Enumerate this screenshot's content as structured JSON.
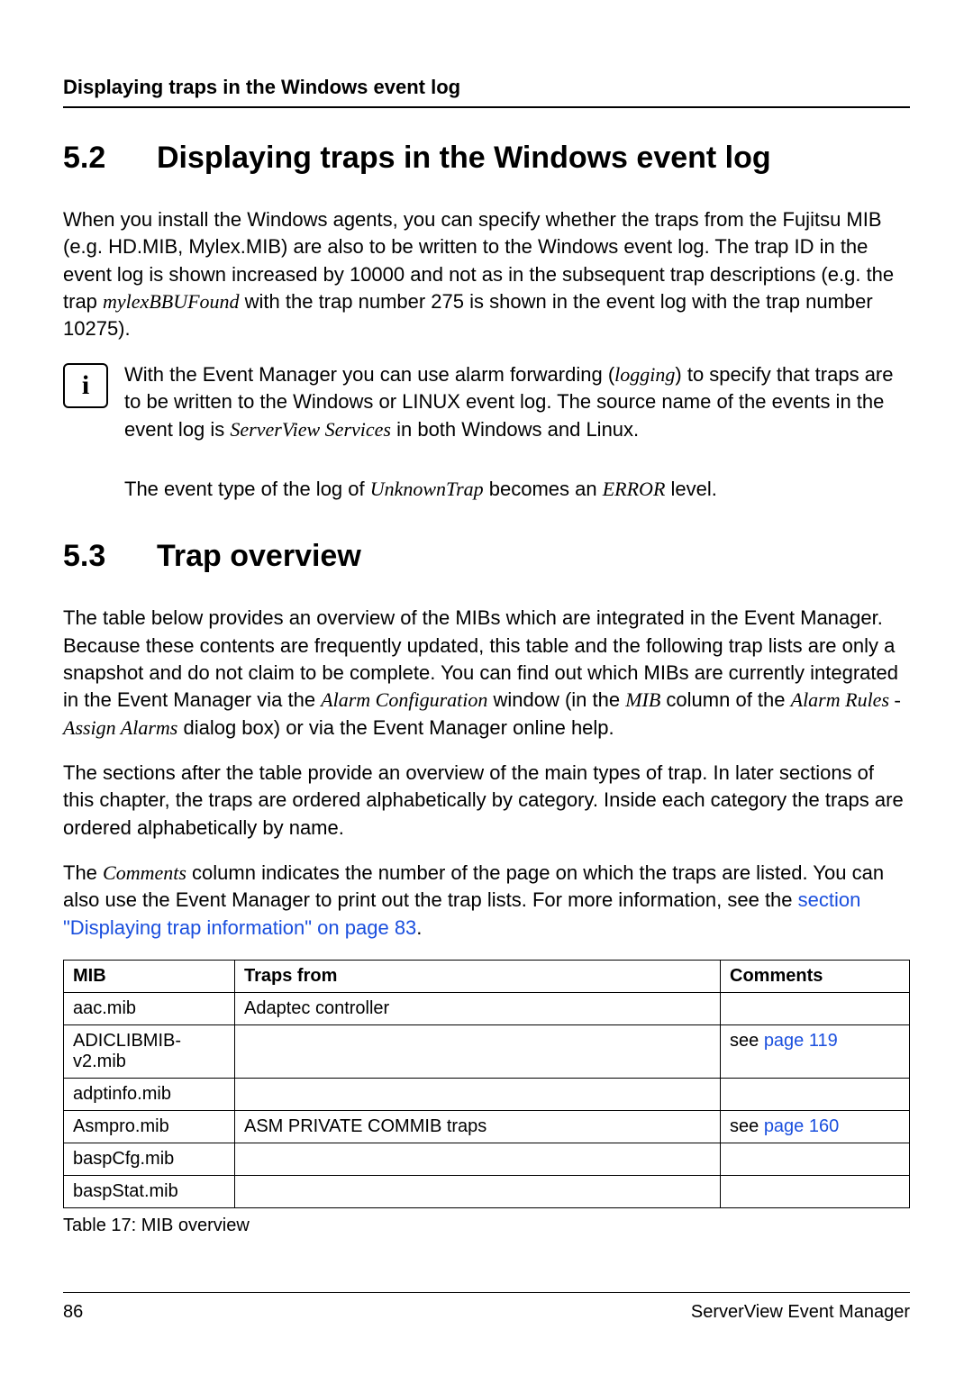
{
  "running_header": "Displaying traps in the Windows event log",
  "section52": {
    "number": "5.2",
    "title": "Displaying traps in the Windows event log",
    "p1_a": "When you install the Windows agents, you can specify whether the traps from the Fujitsu MIB (e.g. HD.MIB, Mylex.MIB) are also to be written to the Windows event log. The trap ID in the event log is shown increased by 10000 and not as in the subsequent trap descriptions (e.g. the trap ",
    "p1_em1": "mylexBBUFound",
    "p1_b": " with the trap number 275 is shown in the event log with the trap number 10275).",
    "info_a": "With the Event Manager you can use alarm forwarding (",
    "info_em1": "logging",
    "info_b": ") to specify that traps are to be written to the Windows or LINUX event log. The source name of the events in the event log is ",
    "info_em2": "ServerView Services",
    "info_c": " in both Windows and Linux.",
    "info2_a": "The event type of the log of ",
    "info2_em1": "UnknownTrap",
    "info2_b": " becomes an ",
    "info2_em2": "ERROR",
    "info2_c": " level."
  },
  "section53": {
    "number": "5.3",
    "title": "Trap overview",
    "p1_a": "The table below provides an overview of the MIBs which are integrated in the Event Manager. Because these contents are frequently updated, this table and the following trap lists are only a snapshot and do not claim to be complete. You can find out which MIBs are currently integrated in the Event Manager via the ",
    "p1_em1": "Alarm Configuration",
    "p1_b": " window (in the ",
    "p1_em2": "MIB",
    "p1_c": " column of the ",
    "p1_em3": "Alarm Rules - Assign Alarms",
    "p1_d": " dialog box) or via the Event Manager online help.",
    "p2": "The sections after the table provide an overview of the main types of trap. In later sections of this chapter, the traps are ordered alphabetically by category. Inside each category the traps are ordered alphabetically by name.",
    "p3_a": "The ",
    "p3_em1": "Comments",
    "p3_b": " column indicates the number of the page on which the traps are listed. You can also use the Event Manager to print out the trap lists. For more information, see the ",
    "p3_link": "section \"Displaying trap information\" on page 83",
    "p3_c": "."
  },
  "table": {
    "headers": {
      "mib": "MIB",
      "traps": "Traps from",
      "comments": "Comments"
    },
    "rows": [
      {
        "mib": "aac.mib",
        "traps": "Adaptec controller",
        "comments_prefix": "",
        "comments_link": ""
      },
      {
        "mib": "ADICLIBMIB-v2.mib",
        "traps": "",
        "comments_prefix": "see ",
        "comments_link": "page 119"
      },
      {
        "mib": "adptinfo.mib",
        "traps": "",
        "comments_prefix": "",
        "comments_link": ""
      },
      {
        "mib": "Asmpro.mib",
        "traps": "ASM PRIVATE COMMIB traps",
        "comments_prefix": "see ",
        "comments_link": "page 160"
      },
      {
        "mib": "baspCfg.mib",
        "traps": "",
        "comments_prefix": "",
        "comments_link": ""
      },
      {
        "mib": "baspStat.mib",
        "traps": "",
        "comments_prefix": "",
        "comments_link": ""
      }
    ],
    "caption": "Table 17: MIB overview"
  },
  "footer": {
    "page_number": "86",
    "doc_title": "ServerView Event Manager"
  },
  "colors": {
    "link": "#1a4fde",
    "text": "#000000",
    "background": "#ffffff"
  }
}
